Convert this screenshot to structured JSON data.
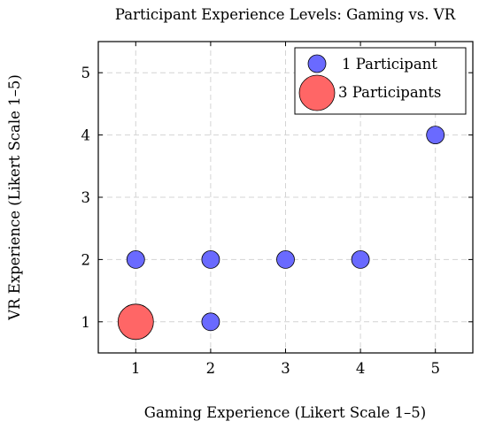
{
  "chart_data": {
    "type": "scatter",
    "title": "Participant Experience Levels: Gaming vs. VR",
    "xlabel": "Gaming Experience (Likert Scale 1–5)",
    "ylabel": "VR Experience (Likert Scale 1–5)",
    "xlim": [
      0.5,
      5.5
    ],
    "ylim": [
      0.5,
      5.5
    ],
    "xticks": [
      1,
      2,
      3,
      4,
      5
    ],
    "yticks": [
      1,
      2,
      3,
      4,
      5
    ],
    "grid": true,
    "legend_position": "top-right",
    "series": [
      {
        "name": "1 Participant",
        "color": "#6a6aff",
        "count": 1,
        "points": [
          {
            "x": 1,
            "y": 2
          },
          {
            "x": 2,
            "y": 2
          },
          {
            "x": 2,
            "y": 1
          },
          {
            "x": 3,
            "y": 2
          },
          {
            "x": 4,
            "y": 2
          },
          {
            "x": 5,
            "y": 4
          }
        ]
      },
      {
        "name": "3 Participants",
        "color": "#ff6666",
        "count": 3,
        "points": [
          {
            "x": 1,
            "y": 1
          }
        ]
      }
    ]
  }
}
